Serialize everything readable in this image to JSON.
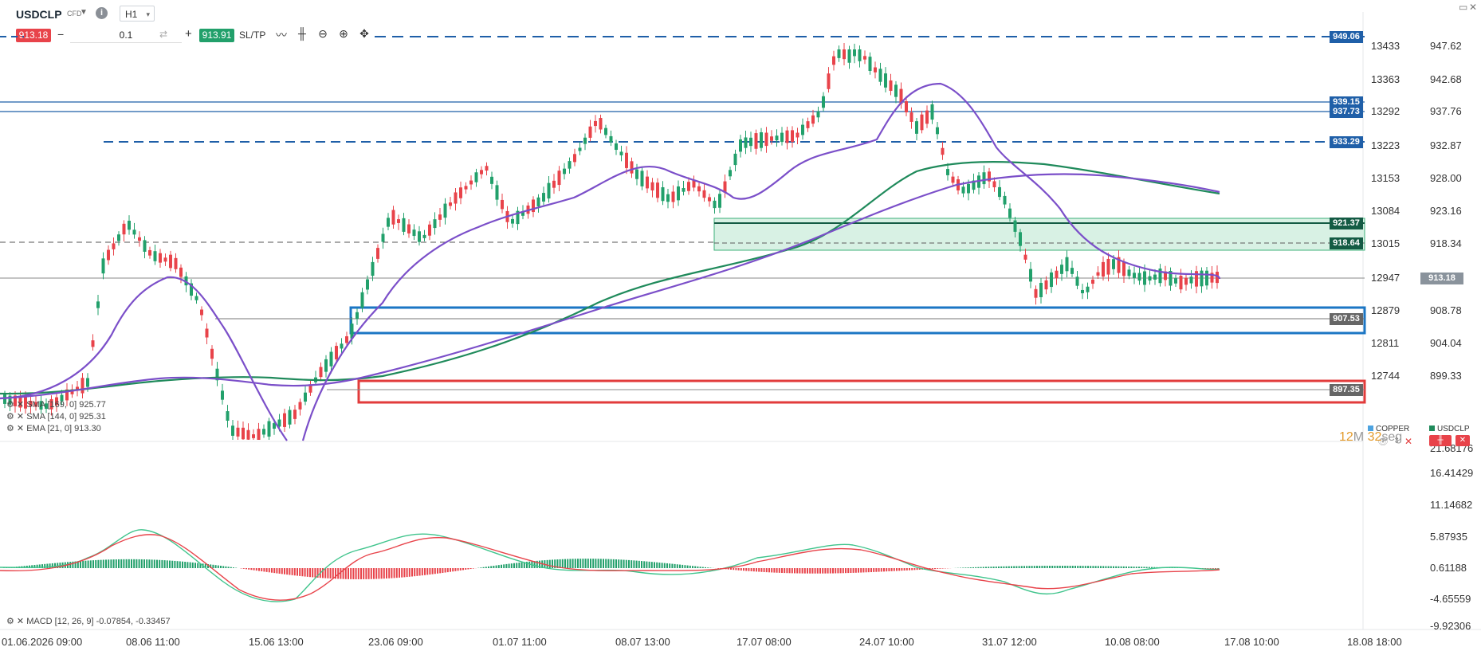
{
  "header": {
    "symbol": "USDCLP",
    "instrument_type": "CFD",
    "timeframe": "H1",
    "info_icon": "info-icon",
    "window_controls": [
      "window-icon",
      "close-icon"
    ]
  },
  "trade_panel": {
    "sell_price": "913.18",
    "quantity": "0.1",
    "buy_price": "913.91",
    "sltp_label": "SL/TP",
    "minus": "−",
    "plus": "+",
    "tools": [
      "line-tool-icon",
      "candles-icon",
      "zoom-out-icon",
      "zoom-in-icon",
      "crosshair-icon"
    ]
  },
  "colors": {
    "up": "#22a06b",
    "down": "#e8434a",
    "accent_blue": "#1f5fa8",
    "sma_fast": "#7b4fc9",
    "sma_slow": "#1f8a5b",
    "zone_blue": "#1b76c4",
    "zone_red": "#e23b3b"
  },
  "price_axis": {
    "labels": [
      "947.62",
      "942.68",
      "937.76",
      "932.87",
      "928.00",
      "923.16",
      "918.34",
      "913.18",
      "908.78",
      "904.04",
      "899.33"
    ],
    "copper_labels": [
      "13433",
      "13363",
      "13292",
      "13223",
      "13153",
      "13084",
      "13015",
      "12947",
      "12879",
      "12811",
      "12744"
    ]
  },
  "level_tags": [
    "949.06",
    "939.15",
    "937.73",
    "933.29",
    "921.37",
    "918.64",
    "907.53",
    "897.35"
  ],
  "current_price_tag": "913.18",
  "indicators": {
    "sma1": "SMA [169, 0] 925.77",
    "sma2": "SMA [144, 0] 925.31",
    "ema": "EMA [21, 0] 913.30",
    "macd": "MACD [12, 26, 9] -0.07854, -0.33457"
  },
  "compare_legend": {
    "items": [
      "COPPER",
      "USDCLP"
    ],
    "colors": [
      "#4da3e0",
      "#1f8a5b"
    ]
  },
  "countdown": {
    "minutes": "12",
    "minutes_unit": "M",
    "seconds": "32",
    "seconds_unit": "seg"
  },
  "macd_axis": {
    "labels": [
      "21.68176",
      "16.41429",
      "11.14682",
      "5.87935",
      "0.61188",
      "-4.65559",
      "-9.92306"
    ]
  },
  "time_axis": {
    "labels": [
      "01.06.2026 09:00",
      "08.06 11:00",
      "15.06 13:00",
      "23.06 09:00",
      "01.07 11:00",
      "08.07 13:00",
      "17.07 08:00",
      "24.07 10:00",
      "31.07 12:00",
      "10.08 08:00",
      "17.08 10:00",
      "18.08 18:00"
    ]
  }
}
